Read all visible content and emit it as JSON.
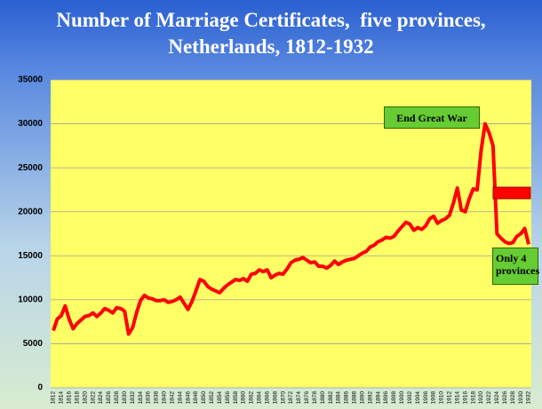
{
  "chart_data": {
    "type": "line",
    "title": "Number of Marriage Certificates,  five provinces, Netherlands, 1812-1932",
    "annotations": [
      "End Great War",
      "Only 4 provinces"
    ],
    "x": [
      1812,
      1813,
      1814,
      1815,
      1816,
      1817,
      1818,
      1819,
      1820,
      1821,
      1822,
      1823,
      1824,
      1825,
      1826,
      1827,
      1828,
      1829,
      1830,
      1831,
      1832,
      1833,
      1834,
      1835,
      1836,
      1837,
      1838,
      1839,
      1840,
      1841,
      1842,
      1843,
      1844,
      1845,
      1846,
      1847,
      1848,
      1849,
      1850,
      1851,
      1852,
      1853,
      1854,
      1855,
      1856,
      1857,
      1858,
      1859,
      1860,
      1861,
      1862,
      1863,
      1864,
      1865,
      1866,
      1867,
      1868,
      1869,
      1870,
      1871,
      1872,
      1873,
      1874,
      1875,
      1876,
      1877,
      1878,
      1879,
      1880,
      1881,
      1882,
      1883,
      1884,
      1885,
      1886,
      1887,
      1888,
      1889,
      1890,
      1891,
      1892,
      1893,
      1894,
      1895,
      1896,
      1897,
      1898,
      1899,
      1900,
      1901,
      1902,
      1903,
      1904,
      1905,
      1906,
      1907,
      1908,
      1909,
      1910,
      1911,
      1912,
      1913,
      1914,
      1915,
      1916,
      1917,
      1918,
      1919,
      1920,
      1921,
      1922,
      1923,
      1924,
      1925,
      1926,
      1927,
      1928,
      1929,
      1930,
      1931,
      1932
    ],
    "series": [
      {
        "name": "Marriage certificates",
        "color": "#ff0000",
        "values": [
          6500,
          7800,
          8200,
          9300,
          7800,
          6700,
          7300,
          7700,
          8100,
          8200,
          8500,
          8100,
          8500,
          9000,
          8800,
          8500,
          9100,
          9000,
          8700,
          6100,
          6800,
          8500,
          9900,
          10500,
          10200,
          10100,
          9900,
          9900,
          10000,
          9700,
          9800,
          10000,
          10300,
          9600,
          8900,
          9800,
          11000,
          12300,
          12100,
          11500,
          11200,
          11000,
          10800,
          11300,
          11700,
          12000,
          12300,
          12200,
          12400,
          12100,
          12900,
          13000,
          13400,
          13200,
          13400,
          12500,
          12800,
          13000,
          12900,
          13500,
          14200,
          14500,
          14600,
          14800,
          14500,
          14200,
          14300,
          13800,
          13800,
          13600,
          13900,
          14400,
          14000,
          14300,
          14500,
          14600,
          14700,
          15000,
          15300,
          15500,
          16000,
          16200,
          16600,
          16800,
          17100,
          17000,
          17200,
          17800,
          18300,
          18800,
          18600,
          17900,
          18200,
          18000,
          18400,
          19200,
          19500,
          18700,
          19000,
          19200,
          19600,
          21000,
          22700,
          20200,
          20000,
          21500,
          22600,
          22500,
          27000,
          30000,
          29000,
          27500,
          17500,
          17000,
          16600,
          16400,
          16500,
          17200,
          17500,
          18100,
          16300
        ]
      }
    ],
    "xlim": [
      1812,
      1932
    ],
    "xticks": [
      1812,
      1814,
      1816,
      1818,
      1820,
      1822,
      1824,
      1826,
      1828,
      1830,
      1832,
      1834,
      1836,
      1838,
      1840,
      1842,
      1844,
      1846,
      1848,
      1850,
      1852,
      1854,
      1856,
      1858,
      1860,
      1862,
      1864,
      1866,
      1868,
      1870,
      1872,
      1874,
      1876,
      1878,
      1880,
      1882,
      1884,
      1886,
      1888,
      1890,
      1892,
      1894,
      1896,
      1898,
      1900,
      1902,
      1904,
      1906,
      1908,
      1910,
      1912,
      1914,
      1916,
      1918,
      1920,
      1922,
      1924,
      1926,
      1928,
      1930,
      1932
    ],
    "ylim": [
      0,
      35000
    ],
    "yticks": [
      0,
      5000,
      10000,
      15000,
      20000,
      25000,
      30000,
      35000
    ],
    "grid": true
  }
}
